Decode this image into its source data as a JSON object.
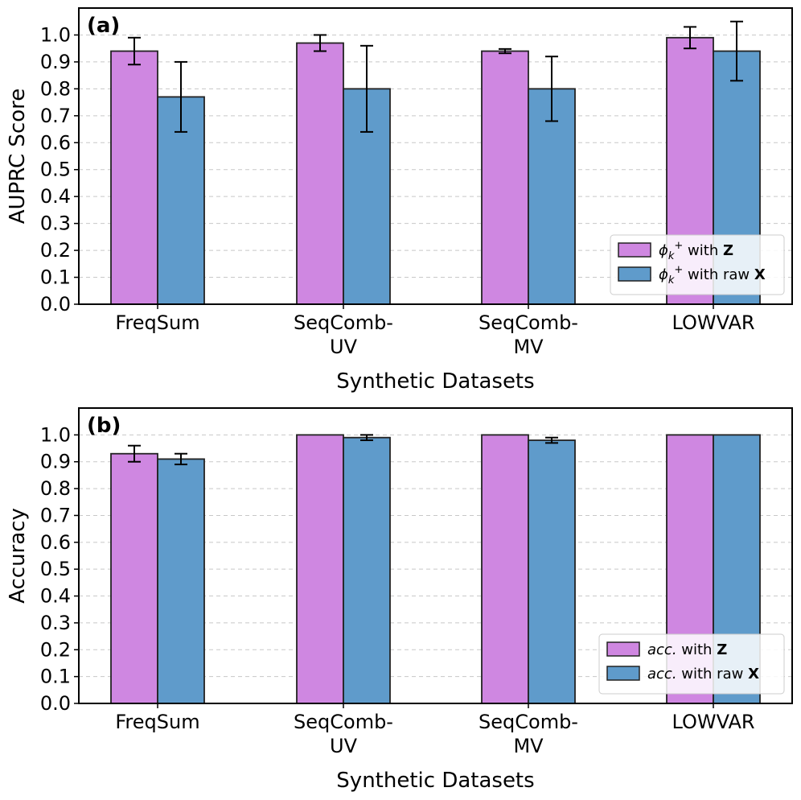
{
  "chart_data": [
    {
      "type": "bar",
      "panel_label": "(a)",
      "title": "",
      "xlabel": "Synthetic Datasets",
      "ylabel": "AUPRC Score",
      "ylim": [
        0.0,
        1.1
      ],
      "yticks": [
        "0.0",
        "0.1",
        "0.2",
        "0.3",
        "0.4",
        "0.5",
        "0.6",
        "0.7",
        "0.8",
        "0.9",
        "1.0"
      ],
      "grid": true,
      "legend_position": "lower-right",
      "categories": [
        [
          "FreqSum"
        ],
        [
          "SeqComb-",
          "UV"
        ],
        [
          "SeqComb-",
          "MV"
        ],
        [
          "LOWVAR"
        ]
      ],
      "series": [
        {
          "name": "ϕk+ with Z",
          "legend": {
            "symbol": "ϕ",
            "sub": "k",
            "sup": "+",
            "mid": " with ",
            "bold": "Z"
          },
          "color": "#cf87e1",
          "values": [
            0.94,
            0.97,
            0.94,
            0.99
          ],
          "errors": [
            0.05,
            0.03,
            0.008,
            0.04
          ]
        },
        {
          "name": "ϕk+ with raw X",
          "legend": {
            "symbol": "ϕ",
            "sub": "k",
            "sup": "+",
            "mid": " with raw ",
            "bold": "X"
          },
          "color": "#5f9bcb",
          "values": [
            0.77,
            0.8,
            0.8,
            0.94
          ],
          "errors": [
            0.13,
            0.16,
            0.12,
            0.11
          ]
        }
      ]
    },
    {
      "type": "bar",
      "panel_label": "(b)",
      "title": "",
      "xlabel": "Synthetic Datasets",
      "ylabel": "Accuracy",
      "ylim": [
        0.0,
        1.1
      ],
      "yticks": [
        "0.0",
        "0.1",
        "0.2",
        "0.3",
        "0.4",
        "0.5",
        "0.6",
        "0.7",
        "0.8",
        "0.9",
        "1.0"
      ],
      "grid": true,
      "legend_position": "lower-right",
      "categories": [
        [
          "FreqSum"
        ],
        [
          "SeqComb-",
          "UV"
        ],
        [
          "SeqComb-",
          "MV"
        ],
        [
          "LOWVAR"
        ]
      ],
      "series": [
        {
          "name": "acc. with Z",
          "legend": {
            "symbol": "acc.",
            "sub": "",
            "sup": "",
            "mid": " with ",
            "bold": "Z"
          },
          "color": "#cf87e1",
          "values": [
            0.93,
            1.0,
            1.0,
            1.0
          ],
          "errors": [
            0.03,
            0.0,
            0.0,
            0.0
          ]
        },
        {
          "name": "acc. with raw X",
          "legend": {
            "symbol": "acc.",
            "sub": "",
            "sup": "",
            "mid": " with raw ",
            "bold": "X"
          },
          "color": "#5f9bcb",
          "values": [
            0.91,
            0.99,
            0.98,
            1.0
          ],
          "errors": [
            0.02,
            0.01,
            0.01,
            0.0
          ]
        }
      ]
    }
  ]
}
